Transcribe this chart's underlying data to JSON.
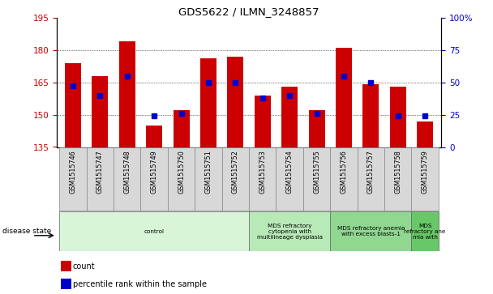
{
  "title": "GDS5622 / ILMN_3248857",
  "samples": [
    "GSM1515746",
    "GSM1515747",
    "GSM1515748",
    "GSM1515749",
    "GSM1515750",
    "GSM1515751",
    "GSM1515752",
    "GSM1515753",
    "GSM1515754",
    "GSM1515755",
    "GSM1515756",
    "GSM1515757",
    "GSM1515758",
    "GSM1515759"
  ],
  "counts": [
    174,
    168,
    184,
    145,
    152,
    176,
    177,
    159,
    163,
    152,
    181,
    164,
    163,
    147
  ],
  "percentiles": [
    47,
    40,
    55,
    24,
    26,
    50,
    50,
    38,
    40,
    26,
    55,
    50,
    24,
    24
  ],
  "y_min": 135,
  "y_max": 195,
  "y_ticks": [
    135,
    150,
    165,
    180,
    195
  ],
  "y2_ticks": [
    0,
    25,
    50,
    75,
    100
  ],
  "bar_color": "#cc0000",
  "dot_color": "#0000cc",
  "disease_groups": [
    {
      "label": "control",
      "start": 0,
      "end": 7,
      "color": "#d8f5d8"
    },
    {
      "label": "MDS refractory\ncytopenia with\nmultilineage dysplasia",
      "start": 7,
      "end": 10,
      "color": "#b8eab8"
    },
    {
      "label": "MDS refractory anemia\nwith excess blasts-1",
      "start": 10,
      "end": 13,
      "color": "#90d890"
    },
    {
      "label": "MDS\nrefractory ane\nmia with",
      "start": 13,
      "end": 14,
      "color": "#68c868"
    }
  ],
  "legend_bar_label": "count",
  "legend_dot_label": "percentile rank within the sample",
  "disease_state_label": "disease state",
  "bg_color": "#ffffff",
  "axis_color_left": "#cc0000",
  "axis_color_right": "#0000cc",
  "sample_box_color": "#d8d8d8",
  "bar_width": 0.6
}
